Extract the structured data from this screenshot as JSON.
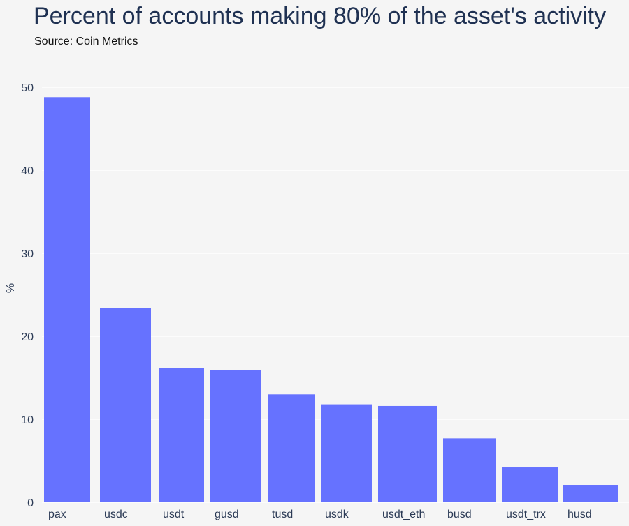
{
  "chart_data": {
    "type": "bar",
    "title": "Percent of accounts making 80% of the asset's activity",
    "subtitle": "Source: Coin Metrics",
    "xlabel": "",
    "ylabel": "%",
    "ylim": [
      0,
      50
    ],
    "yticks": [
      0,
      10,
      20,
      30,
      40,
      50
    ],
    "grid": true,
    "bar_color": "#6672ff",
    "categories": [
      "pax",
      "usdc",
      "usdt",
      "gusd",
      "tusd",
      "usdk",
      "usdt_eth",
      "busd",
      "usdt_trx",
      "husd"
    ],
    "values": [
      48.8,
      23.4,
      16.2,
      15.9,
      13.0,
      11.8,
      11.6,
      7.7,
      4.2,
      2.1
    ]
  }
}
